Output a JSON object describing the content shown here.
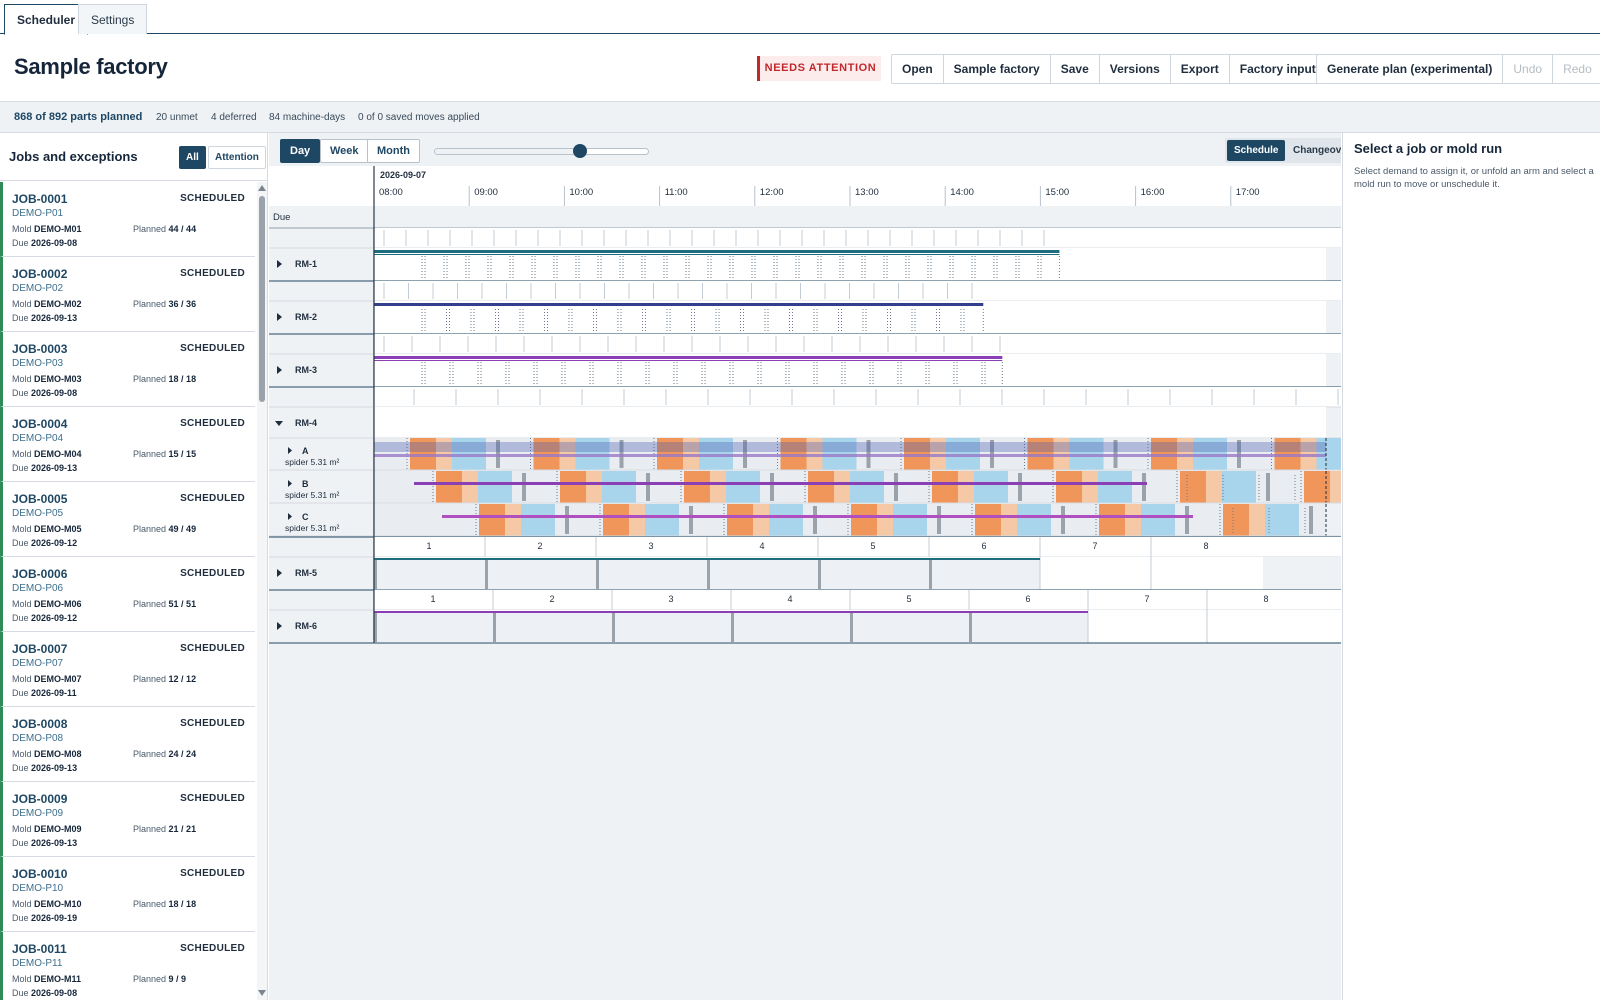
{
  "tabs": [
    {
      "label": "Scheduler"
    },
    {
      "label": "Settings"
    }
  ],
  "header": {
    "title": "Sample factory",
    "attention_badge": "NEEDS ATTENTION",
    "file_buttons": [
      "Open",
      "Sample factory",
      "Save",
      "Versions",
      "Export",
      "Factory inputs"
    ],
    "plan_buttons": [
      "Generate plan (experimental)",
      "Undo",
      "Redo"
    ]
  },
  "status": {
    "planned": "868 of 892 parts planned",
    "unmet": "20 unmet",
    "deferred": "4 deferred",
    "machine_days": "84 machine-days",
    "moves": "0 of 0 saved moves applied"
  },
  "left_panel": {
    "title": "Jobs and exceptions",
    "filters": [
      "All",
      "Attention"
    ],
    "mold_label": "Mold",
    "due_label": "Due",
    "planned_label": "Planned",
    "jobs": [
      {
        "id": "JOB-0001",
        "part": "DEMO-P01",
        "mold": "DEMO-M01",
        "due": "2026-09-08",
        "planned": "44 / 44",
        "status": "SCHEDULED"
      },
      {
        "id": "JOB-0002",
        "part": "DEMO-P02",
        "mold": "DEMO-M02",
        "due": "2026-09-13",
        "planned": "36 / 36",
        "status": "SCHEDULED"
      },
      {
        "id": "JOB-0003",
        "part": "DEMO-P03",
        "mold": "DEMO-M03",
        "due": "2026-09-08",
        "planned": "18 / 18",
        "status": "SCHEDULED"
      },
      {
        "id": "JOB-0004",
        "part": "DEMO-P04",
        "mold": "DEMO-M04",
        "due": "2026-09-13",
        "planned": "15 / 15",
        "status": "SCHEDULED"
      },
      {
        "id": "JOB-0005",
        "part": "DEMO-P05",
        "mold": "DEMO-M05",
        "due": "2026-09-12",
        "planned": "49 / 49",
        "status": "SCHEDULED"
      },
      {
        "id": "JOB-0006",
        "part": "DEMO-P06",
        "mold": "DEMO-M06",
        "due": "2026-09-12",
        "planned": "51 / 51",
        "status": "SCHEDULED"
      },
      {
        "id": "JOB-0007",
        "part": "DEMO-P07",
        "mold": "DEMO-M07",
        "due": "2026-09-11",
        "planned": "12 / 12",
        "status": "SCHEDULED"
      },
      {
        "id": "JOB-0008",
        "part": "DEMO-P08",
        "mold": "DEMO-M08",
        "due": "2026-09-13",
        "planned": "24 / 24",
        "status": "SCHEDULED"
      },
      {
        "id": "JOB-0009",
        "part": "DEMO-P09",
        "mold": "DEMO-M09",
        "due": "2026-09-13",
        "planned": "21 / 21",
        "status": "SCHEDULED"
      },
      {
        "id": "JOB-0010",
        "part": "DEMO-P10",
        "mold": "DEMO-M10",
        "due": "2026-09-19",
        "planned": "18 / 18",
        "status": "SCHEDULED"
      },
      {
        "id": "JOB-0011",
        "part": "DEMO-P11",
        "mold": "DEMO-M11",
        "due": "2026-09-08",
        "planned": "9 / 9",
        "status": "SCHEDULED"
      }
    ]
  },
  "timeline": {
    "zoom_options": [
      "Day",
      "Week",
      "Month"
    ],
    "zoom_selected": "Day",
    "zoom_level": 0.68,
    "modes": [
      "Schedule",
      "Changeover"
    ],
    "mode_selected": "Schedule",
    "date": "2026-09-07",
    "hours": [
      "08:00",
      "09:00",
      "10:00",
      "11:00",
      "12:00",
      "13:00",
      "14:00",
      "15:00",
      "16:00",
      "17:00"
    ],
    "due_label": "Due",
    "machines": [
      {
        "name": "RM-1",
        "expanded": false,
        "color": "#1f6e80",
        "run_end_hours": 7.2
      },
      {
        "name": "RM-2",
        "expanded": false,
        "color": "#33408f",
        "run_end_hours": 6.4
      },
      {
        "name": "RM-3",
        "expanded": false,
        "color": "#8a3fb5",
        "run_end_hours": 6.6
      },
      {
        "name": "RM-4",
        "expanded": true,
        "arms": [
          {
            "name": "A",
            "sub": "spider 5.31 m²"
          },
          {
            "name": "B",
            "sub": "spider 5.31 m²"
          },
          {
            "name": "C",
            "sub": "spider 5.31 m²"
          }
        ]
      },
      {
        "name": "RM-5",
        "expanded": false,
        "color": "#1f6e80",
        "cycles": [
          "1",
          "2",
          "3",
          "4",
          "5",
          "6",
          "7",
          "8"
        ]
      },
      {
        "name": "RM-6",
        "expanded": false,
        "color": "#8a3fb5",
        "cycles": [
          "1",
          "2",
          "3",
          "4",
          "5",
          "6",
          "7",
          "8"
        ]
      }
    ],
    "colors": {
      "heat": "#f0965a",
      "cool": "#a8d4ec",
      "accent": "#1e4763"
    }
  },
  "right_panel": {
    "title": "Select a job or mold run",
    "help": "Select demand to assign it, or unfold an arm and select a mold run to move or unschedule it."
  }
}
